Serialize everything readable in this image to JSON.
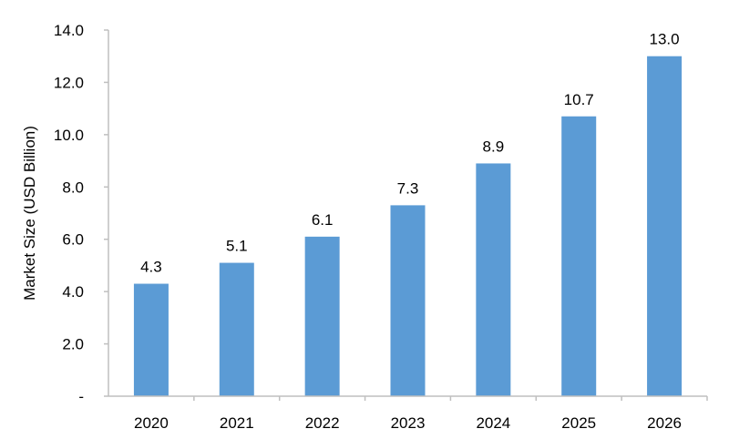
{
  "chart_data": {
    "type": "bar",
    "title": "",
    "xlabel": "",
    "ylabel": "Market Size (USD Billion)",
    "categories": [
      "2020",
      "2021",
      "2022",
      "2023",
      "2024",
      "2025",
      "2026"
    ],
    "values": [
      4.3,
      5.1,
      6.1,
      7.3,
      8.9,
      10.7,
      13.0
    ],
    "data_labels": [
      "4.3",
      "5.1",
      "6.1",
      "7.3",
      "8.9",
      "10.7",
      "13.0"
    ],
    "ylim": [
      0,
      14
    ],
    "yticks": [
      0,
      2,
      4,
      6,
      8,
      10,
      12,
      14
    ],
    "ytick_labels": [
      "-",
      "2.0",
      "4.0",
      "6.0",
      "8.0",
      "10.0",
      "12.0",
      "14.0"
    ],
    "bar_color": "#5b9bd5",
    "axis_color": "#bfbfbf",
    "grid": false,
    "legend": "none"
  }
}
